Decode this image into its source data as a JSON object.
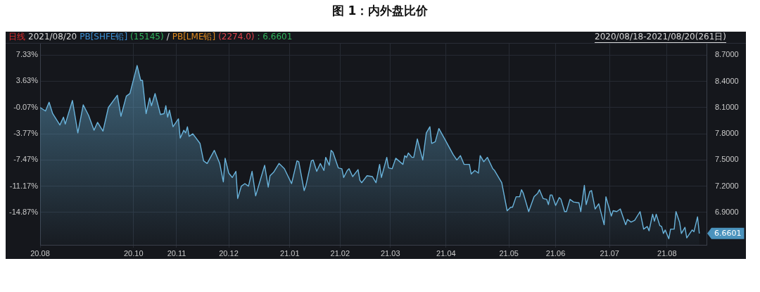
{
  "chart_data": {
    "type": "area",
    "title": "图 1：内外盘比价",
    "annotations": [
      "日线",
      "2021/08/20",
      "PB[SHFE铅]",
      "(15145)",
      "/",
      "PB[LME铅]",
      "(2274.0)",
      ": 6.6601",
      "2020/08/18-2021/08/20(261日)",
      "6.6601"
    ],
    "x": [
      "2020-08-18",
      "2020-08-21",
      "2020-08-23",
      "2020-08-25",
      "2020-08-29",
      "2020-08-31",
      "2020-09-01",
      "2020-09-05",
      "2020-09-08",
      "2020-09-11",
      "2020-09-14",
      "2020-09-17",
      "2020-09-19",
      "2020-09-22",
      "2020-09-25",
      "2020-09-30",
      "2020-10-02",
      "2020-10-05",
      "2020-10-07",
      "2020-10-11",
      "2020-10-13",
      "2020-10-14",
      "2020-10-16",
      "2020-10-18",
      "2020-10-19",
      "2020-10-21",
      "2020-10-24",
      "2020-10-26",
      "2020-10-27",
      "2020-10-28",
      "2020-10-29",
      "2020-10-31",
      "2020-11-03",
      "2020-11-04",
      "2020-11-06",
      "2020-11-07",
      "2020-11-08",
      "2020-11-09",
      "2020-11-11",
      "2020-11-15",
      "2020-11-17",
      "2020-11-19",
      "2020-11-23",
      "2020-11-26",
      "2020-11-28",
      "2020-11-29",
      "2020-12-01",
      "2020-12-03",
      "2020-12-05",
      "2020-12-06",
      "2020-12-08",
      "2020-12-10",
      "2020-12-12",
      "2020-12-14",
      "2020-12-16",
      "2020-12-19",
      "2020-12-21",
      "2020-12-23",
      "2020-12-24",
      "2020-12-26",
      "2020-12-29",
      "2021-01-01",
      "2021-01-05",
      "2021-01-08",
      "2021-01-09",
      "2021-01-12",
      "2021-01-13",
      "2021-01-16",
      "2021-01-17",
      "2021-01-19",
      "2021-01-21",
      "2021-01-23",
      "2021-01-24",
      "2021-01-26",
      "2021-01-27",
      "2021-01-28",
      "2021-01-31",
      "2021-02-02",
      "2021-02-03",
      "2021-02-05",
      "2021-02-06",
      "2021-02-08",
      "2021-02-11",
      "2021-02-12",
      "2021-02-13",
      "2021-02-16",
      "2021-02-19",
      "2021-02-21",
      "2021-02-23",
      "2021-02-24",
      "2021-02-27",
      "2021-02-28",
      "2021-03-02",
      "2021-03-04",
      "2021-03-08",
      "2021-03-09",
      "2021-03-10",
      "2021-03-11",
      "2021-03-13",
      "2021-03-14",
      "2021-03-16",
      "2021-03-19",
      "2021-03-21",
      "2021-03-23",
      "2021-03-24",
      "2021-03-26",
      "2021-03-28",
      "2021-03-31",
      "2021-04-05",
      "2021-04-07",
      "2021-04-09",
      "2021-04-11",
      "2021-04-14",
      "2021-04-15",
      "2021-04-17",
      "2021-04-19",
      "2021-04-20",
      "2021-04-22",
      "2021-04-24",
      "2021-04-27",
      "2021-04-28",
      "2021-05-02",
      "2021-05-05",
      "2021-05-07",
      "2021-05-08",
      "2021-05-10",
      "2021-05-12",
      "2021-05-13",
      "2021-05-14",
      "2021-05-17",
      "2021-05-20",
      "2021-05-22",
      "2021-05-23",
      "2021-05-25",
      "2021-05-27",
      "2021-05-28",
      "2021-05-29",
      "2021-05-30",
      "2021-06-01",
      "2021-06-03",
      "2021-06-04",
      "2021-06-06",
      "2021-06-07",
      "2021-06-09",
      "2021-06-11",
      "2021-06-14",
      "2021-06-15",
      "2021-06-17",
      "2021-06-18",
      "2021-06-20",
      "2021-06-21",
      "2021-06-23",
      "2021-06-25",
      "2021-06-28",
      "2021-06-29",
      "2021-07-02",
      "2021-07-03",
      "2021-07-05",
      "2021-07-07",
      "2021-07-10",
      "2021-07-11",
      "2021-07-13",
      "2021-07-15",
      "2021-07-18",
      "2021-07-20",
      "2021-07-22",
      "2021-07-23",
      "2021-07-25",
      "2021-07-26",
      "2021-07-27",
      "2021-07-29",
      "2021-07-30",
      "2021-07-31",
      "2021-08-01",
      "2021-08-03",
      "2021-08-04",
      "2021-08-06",
      "2021-08-07",
      "2021-08-09",
      "2021-08-10",
      "2021-08-12",
      "2021-08-13",
      "2021-08-16",
      "2021-08-17",
      "2021-08-19",
      "2021-08-20"
    ],
    "series": [
      {
        "color": "#6ab4dc",
        "axis": "y2",
        "values": [
          8.1,
          8.06,
          8.16,
          8.03,
          7.9,
          7.99,
          7.91,
          8.18,
          7.81,
          8.13,
          8.01,
          7.84,
          7.93,
          7.83,
          8.1,
          8.24,
          8.0,
          8.23,
          8.26,
          8.58,
          8.41,
          8.41,
          8.03,
          8.21,
          8.12,
          8.26,
          8.02,
          8.03,
          8.12,
          7.99,
          8.07,
          7.88,
          7.97,
          7.75,
          7.84,
          7.81,
          7.88,
          7.77,
          7.8,
          7.69,
          7.49,
          7.46,
          7.61,
          7.46,
          7.25,
          7.52,
          7.35,
          7.3,
          7.37,
          7.06,
          7.2,
          7.23,
          7.2,
          7.37,
          7.09,
          7.3,
          7.44,
          7.19,
          7.32,
          7.36,
          7.46,
          7.4,
          7.23,
          7.49,
          7.48,
          7.15,
          7.21,
          7.49,
          7.5,
          7.37,
          7.46,
          7.38,
          7.53,
          7.44,
          7.61,
          7.59,
          7.41,
          7.4,
          7.3,
          7.38,
          7.4,
          7.31,
          7.39,
          7.27,
          7.24,
          7.32,
          7.31,
          7.24,
          7.45,
          7.3,
          7.53,
          7.41,
          7.4,
          7.52,
          7.45,
          7.55,
          7.53,
          7.58,
          7.53,
          7.53,
          7.74,
          7.5,
          7.81,
          7.88,
          7.69,
          7.71,
          7.86,
          7.75,
          7.56,
          7.5,
          7.55,
          7.45,
          7.45,
          7.34,
          7.38,
          7.35,
          7.55,
          7.48,
          7.53,
          7.4,
          7.38,
          7.24,
          6.92,
          6.96,
          6.96,
          7.08,
          7.08,
          7.16,
          7.12,
          6.91,
          7.08,
          7.12,
          7.16,
          7.06,
          7.05,
          6.99,
          7.1,
          7.1,
          6.98,
          7.07,
          7.05,
          6.91,
          6.91,
          7.05,
          7.02,
          7.01,
          6.91,
          7.21,
          6.99,
          7.14,
          7.15,
          6.94,
          7.0,
          6.76,
          7.08,
          6.86,
          6.92,
          6.91,
          6.94,
          6.76,
          6.82,
          6.79,
          6.81,
          6.91,
          6.71,
          6.74,
          6.69,
          6.88,
          6.8,
          6.88,
          6.75,
          6.74,
          6.66,
          6.7,
          6.6,
          6.71,
          6.71,
          6.91,
          6.79,
          6.66,
          6.73,
          6.61,
          6.7,
          6.68,
          6.85,
          6.66
        ]
      }
    ],
    "xlim": [
      "2020-08-18",
      "2021-08-24"
    ],
    "xticks": [
      {
        "value": "2020-08-18",
        "label": "20.08"
      },
      {
        "value": "2020-10-09",
        "label": "20.10"
      },
      {
        "value": "2020-11-02",
        "label": "20.11"
      },
      {
        "value": "2020-12-01",
        "label": "20.12"
      },
      {
        "value": "2021-01-04",
        "label": "21.01"
      },
      {
        "value": "2021-02-01",
        "label": "21.02"
      },
      {
        "value": "2021-03-01",
        "label": "21.03"
      },
      {
        "value": "2021-04-01",
        "label": "21.04"
      },
      {
        "value": "2021-05-06",
        "label": "21.05"
      },
      {
        "value": "2021-06-01",
        "label": "21.06"
      },
      {
        "value": "2021-07-01",
        "label": "21.07"
      },
      {
        "value": "2021-08-02",
        "label": "21.08"
      }
    ],
    "ylim": [
      -19.43,
      8.92
    ],
    "yticks": [
      {
        "value": 7.33,
        "label": "7.33%"
      },
      {
        "value": 3.63,
        "label": "3.63%"
      },
      {
        "value": -0.07,
        "label": "-0.07%"
      },
      {
        "value": -3.77,
        "label": "-3.77%"
      },
      {
        "value": -7.47,
        "label": "-7.47%"
      },
      {
        "value": -11.17,
        "label": "-11.17%"
      },
      {
        "value": -14.87,
        "label": "-14.87%"
      }
    ],
    "y2lim": [
      6.53,
      8.83
    ],
    "y2ticks": [
      {
        "value": 8.7,
        "label": "8.7000"
      },
      {
        "value": 8.4,
        "label": "8.4000"
      },
      {
        "value": 8.1,
        "label": "8.1000"
      },
      {
        "value": 7.8,
        "label": "7.8000"
      },
      {
        "value": 7.5,
        "label": "7.5000"
      },
      {
        "value": 7.2,
        "label": "7.2000"
      },
      {
        "value": 6.9,
        "label": "6.9000"
      }
    ],
    "grid": true
  }
}
